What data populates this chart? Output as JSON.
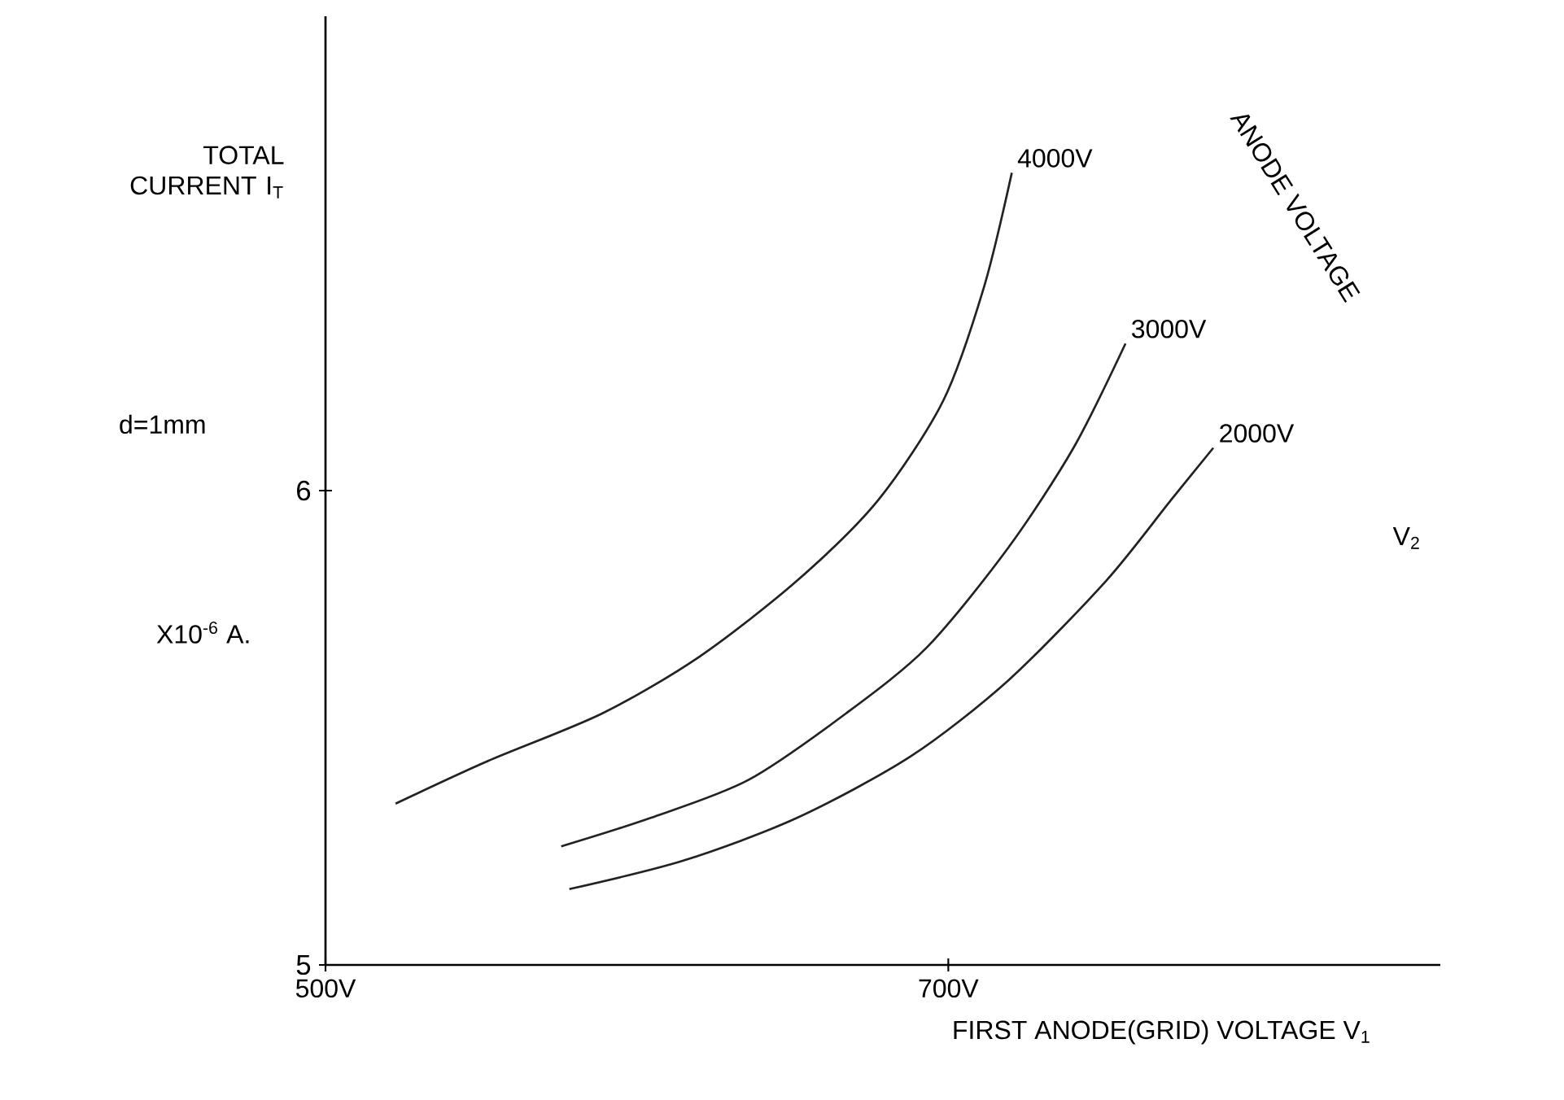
{
  "chart_data": {
    "type": "line",
    "xlabel": "FIRST ANODE(GRID) VOLTAGE V$_{1}$",
    "ylabel": "TOTAL CURRENT I$_{T}$",
    "legend_title": "ANODE VOLTAGE",
    "annotations": [
      "d=1mm",
      "X10$^{-6}$ A.",
      "V$_{2}$"
    ],
    "xlim": [
      500,
      858
    ],
    "ylim": [
      5,
      7.0
    ],
    "xticks": [
      {
        "value": 500,
        "label": "500V"
      },
      {
        "value": 700,
        "label": "700V"
      }
    ],
    "yticks": [
      5,
      6
    ],
    "series": [
      {
        "name": "4000V",
        "color": "#222222",
        "x": [
          522.5,
          552.2,
          588.8,
          620.1,
          651.4,
          677.5,
          698.4,
          711.5,
          720.4
        ],
        "values": [
          5.34,
          5.43,
          5.53,
          5.65,
          5.81,
          5.98,
          6.19,
          6.43,
          6.67
        ]
      },
      {
        "name": "3000V",
        "color": "#222222",
        "x": [
          575.7,
          604.4,
          635.8,
          667.1,
          693.2,
          719.3,
          740.2,
          756.9
        ],
        "values": [
          5.25,
          5.31,
          5.39,
          5.53,
          5.67,
          5.88,
          6.09,
          6.31
        ]
      },
      {
        "name": "2000V",
        "color": "#222222",
        "x": [
          578.3,
          614.9,
          651.4,
          688.0,
          719.3,
          750.7,
          771.5,
          785.1
        ],
        "values": [
          5.16,
          5.22,
          5.31,
          5.44,
          5.6,
          5.81,
          5.98,
          6.09
        ]
      }
    ]
  }
}
